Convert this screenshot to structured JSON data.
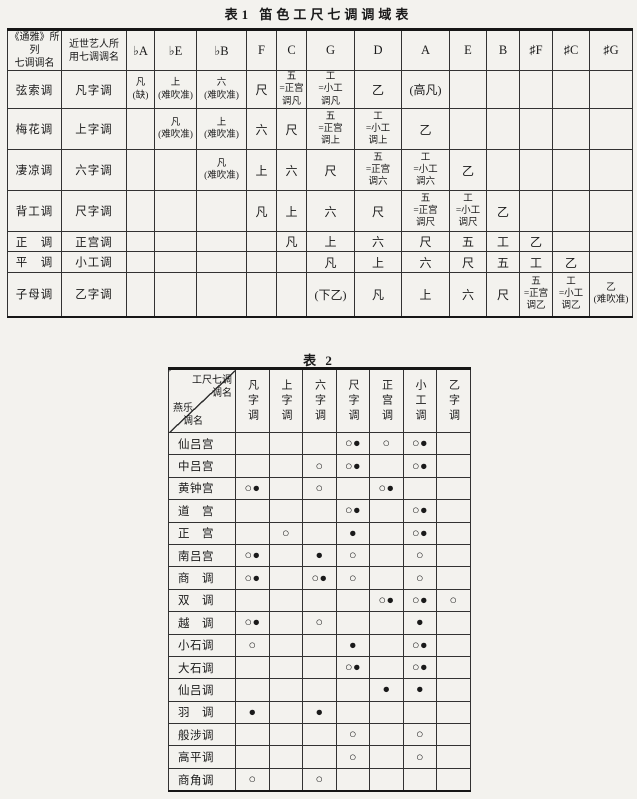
{
  "table1": {
    "title": "表1 笛色工尺七调调域表",
    "header": [
      "《通雅》所列\n七调调名",
      "近世艺人所\n用七调调名",
      "♭A",
      "♭E",
      "♭B",
      "F",
      "C",
      "G",
      "D",
      "A",
      "E",
      "B",
      "♯F",
      "♯C",
      "♯G"
    ],
    "rows": [
      {
        "cells": [
          "弦索调",
          "凡字调",
          "凡\n(缺)",
          "上\n(难吹准)",
          "六\n(难吹准)",
          "尺",
          "五\n=正宫\n调凡",
          "工\n=小工\n调凡",
          "乙",
          "(高凡)",
          "",
          "",
          "",
          "",
          ""
        ]
      },
      {
        "cells": [
          "梅花调",
          "上字调",
          "",
          "凡\n(难吹准)",
          "上\n(难吹准)",
          "六",
          "尺",
          "五\n=正宫\n调上",
          "工\n=小工\n调上",
          "乙",
          "",
          "",
          "",
          "",
          ""
        ]
      },
      {
        "cells": [
          "凄凉调",
          "六字调",
          "",
          "",
          "凡\n(难吹准)",
          "上",
          "六",
          "尺",
          "五\n=正宫\n调六",
          "工\n=小工\n调六",
          "乙",
          "",
          "",
          "",
          ""
        ]
      },
      {
        "cells": [
          "背工调",
          "尺字调",
          "",
          "",
          "",
          "凡",
          "上",
          "六",
          "尺",
          "五\n=正宫\n调尺",
          "工\n=小工\n调尺",
          "乙",
          "",
          "",
          ""
        ]
      },
      {
        "cells": [
          "正　调",
          "正宫调",
          "",
          "",
          "",
          "",
          "凡",
          "上",
          "六",
          "尺",
          "五",
          "工",
          "乙",
          "",
          ""
        ]
      },
      {
        "cells": [
          "平　调",
          "小工调",
          "",
          "",
          "",
          "",
          "",
          "凡",
          "上",
          "六",
          "尺",
          "五",
          "工",
          "乙",
          ""
        ]
      },
      {
        "cells": [
          "子母调",
          "乙字调",
          "",
          "",
          "",
          "",
          "",
          "(下乙)",
          "凡",
          "上",
          "六",
          "尺",
          "五\n=正宫\n调乙",
          "工\n=小工\n调乙",
          "乙\n(难吹准)"
        ]
      }
    ]
  },
  "table2": {
    "title": "表 2",
    "corner_top": "工尺七调\n调名",
    "corner_bottom": "燕乐\n　调名",
    "columns": [
      "凡字调",
      "上字调",
      "六字调",
      "尺字调",
      "正宫调",
      "小工调",
      "乙字调"
    ],
    "legend": {
      "open_circle": "○",
      "filled_circle": "●"
    },
    "rows": [
      {
        "label": "仙吕宫",
        "marks": [
          "",
          "",
          "",
          "○●",
          "○",
          "○●",
          ""
        ]
      },
      {
        "label": "中吕宫",
        "marks": [
          "",
          "",
          "○",
          "○●",
          "",
          "○●",
          ""
        ]
      },
      {
        "label": "黄钟宫",
        "marks": [
          "○●",
          "",
          "○",
          "",
          "○●",
          "",
          ""
        ]
      },
      {
        "label": "道　宫",
        "marks": [
          "",
          "",
          "",
          "○●",
          "",
          "○●",
          ""
        ]
      },
      {
        "label": "正　宫",
        "marks": [
          "",
          "○",
          "",
          "●",
          "",
          "○●",
          ""
        ]
      },
      {
        "label": "南吕宫",
        "marks": [
          "○●",
          "",
          "●",
          "○",
          "",
          "○",
          ""
        ]
      },
      {
        "label": "商　调",
        "marks": [
          "○●",
          "",
          "○●",
          "○",
          "",
          "○",
          ""
        ]
      },
      {
        "label": "双　调",
        "marks": [
          "",
          "",
          "",
          "",
          "○●",
          "○●",
          "○"
        ]
      },
      {
        "label": "越　调",
        "marks": [
          "○●",
          "",
          "○",
          "",
          "",
          "●",
          ""
        ]
      },
      {
        "label": "小石调",
        "marks": [
          "○",
          "",
          "",
          "●",
          "",
          "○●",
          ""
        ]
      },
      {
        "label": "大石调",
        "marks": [
          "",
          "",
          "",
          "○●",
          "",
          "○●",
          ""
        ]
      },
      {
        "label": "仙吕调",
        "marks": [
          "",
          "",
          "",
          "",
          "●",
          "●",
          ""
        ]
      },
      {
        "label": "羽　调",
        "marks": [
          "●",
          "",
          "●",
          "",
          "",
          "",
          ""
        ]
      },
      {
        "label": "般涉调",
        "marks": [
          "",
          "",
          "",
          "○",
          "",
          "○",
          ""
        ]
      },
      {
        "label": "高平调",
        "marks": [
          "",
          "",
          "",
          "○",
          "",
          "○",
          ""
        ]
      },
      {
        "label": "商角调",
        "marks": [
          "○",
          "",
          "○",
          "",
          "",
          "",
          ""
        ]
      }
    ]
  }
}
